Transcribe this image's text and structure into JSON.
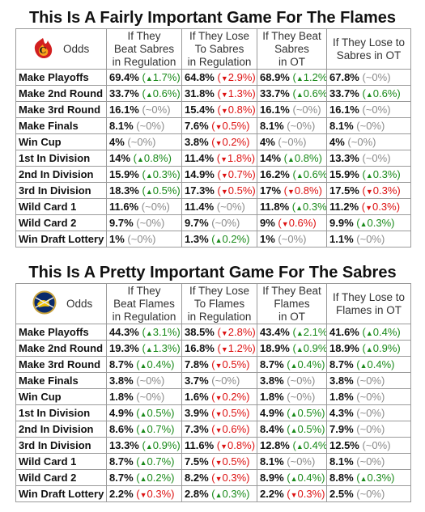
{
  "tables": [
    {
      "title": "This Is A Fairly Important Game For The Flames",
      "logo_icon": "flames-logo-icon",
      "odds_label": "Odds",
      "headers": [
        [
          "If They",
          "Beat Sabres",
          "in Regulation"
        ],
        [
          "If They Lose",
          "To Sabres",
          "in Regulation"
        ],
        [
          "If They Beat",
          "Sabres",
          "in OT"
        ],
        [
          "If They Lose to",
          "Sabres in OT"
        ]
      ],
      "rows": [
        {
          "label": "Make Playoffs",
          "cells": [
            {
              "value": "69.4%",
              "change": "1.7%",
              "dir": "up"
            },
            {
              "value": "64.8%",
              "change": "2.9%",
              "dir": "down"
            },
            {
              "value": "68.9%",
              "change": "1.2%",
              "dir": "up"
            },
            {
              "value": "67.8%",
              "change": "~0%",
              "dir": "zero"
            }
          ]
        },
        {
          "label": "Make 2nd Round",
          "cells": [
            {
              "value": "33.7%",
              "change": "0.6%",
              "dir": "up"
            },
            {
              "value": "31.8%",
              "change": "1.3%",
              "dir": "down"
            },
            {
              "value": "33.7%",
              "change": "0.6%",
              "dir": "up"
            },
            {
              "value": "33.7%",
              "change": "0.6%",
              "dir": "up"
            }
          ]
        },
        {
          "label": "Make 3rd Round",
          "cells": [
            {
              "value": "16.1%",
              "change": "~0%",
              "dir": "zero"
            },
            {
              "value": "15.4%",
              "change": "0.8%",
              "dir": "down"
            },
            {
              "value": "16.1%",
              "change": "~0%",
              "dir": "zero"
            },
            {
              "value": "16.1%",
              "change": "~0%",
              "dir": "zero"
            }
          ]
        },
        {
          "label": "Make Finals",
          "cells": [
            {
              "value": "8.1%",
              "change": "~0%",
              "dir": "zero"
            },
            {
              "value": "7.6%",
              "change": "0.5%",
              "dir": "down"
            },
            {
              "value": "8.1%",
              "change": "~0%",
              "dir": "zero"
            },
            {
              "value": "8.1%",
              "change": "~0%",
              "dir": "zero"
            }
          ]
        },
        {
          "label": "Win Cup",
          "cells": [
            {
              "value": "4%",
              "change": "~0%",
              "dir": "zero"
            },
            {
              "value": "3.8%",
              "change": "0.2%",
              "dir": "down"
            },
            {
              "value": "4%",
              "change": "~0%",
              "dir": "zero"
            },
            {
              "value": "4%",
              "change": "~0%",
              "dir": "zero"
            }
          ]
        },
        {
          "label": "1st In Division",
          "cells": [
            {
              "value": "14%",
              "change": "0.8%",
              "dir": "up"
            },
            {
              "value": "11.4%",
              "change": "1.8%",
              "dir": "down"
            },
            {
              "value": "14%",
              "change": "0.8%",
              "dir": "up"
            },
            {
              "value": "13.3%",
              "change": "~0%",
              "dir": "zero"
            }
          ]
        },
        {
          "label": "2nd In Division",
          "cells": [
            {
              "value": "15.9%",
              "change": "0.3%",
              "dir": "up"
            },
            {
              "value": "14.9%",
              "change": "0.7%",
              "dir": "down"
            },
            {
              "value": "16.2%",
              "change": "0.6%",
              "dir": "up"
            },
            {
              "value": "15.9%",
              "change": "0.3%",
              "dir": "up"
            }
          ]
        },
        {
          "label": "3rd In Division",
          "cells": [
            {
              "value": "18.3%",
              "change": "0.5%",
              "dir": "up"
            },
            {
              "value": "17.3%",
              "change": "0.5%",
              "dir": "down"
            },
            {
              "value": "17%",
              "change": "0.8%",
              "dir": "down"
            },
            {
              "value": "17.5%",
              "change": "0.3%",
              "dir": "down"
            }
          ]
        },
        {
          "label": "Wild Card 1",
          "cells": [
            {
              "value": "11.6%",
              "change": "~0%",
              "dir": "zero"
            },
            {
              "value": "11.4%",
              "change": "~0%",
              "dir": "zero"
            },
            {
              "value": "11.8%",
              "change": "0.3%",
              "dir": "up"
            },
            {
              "value": "11.2%",
              "change": "0.3%",
              "dir": "down"
            }
          ]
        },
        {
          "label": "Wild Card 2",
          "cells": [
            {
              "value": "9.7%",
              "change": "~0%",
              "dir": "zero"
            },
            {
              "value": "9.7%",
              "change": "~0%",
              "dir": "zero"
            },
            {
              "value": "9%",
              "change": "0.6%",
              "dir": "down"
            },
            {
              "value": "9.9%",
              "change": "0.3%",
              "dir": "up"
            }
          ]
        },
        {
          "label": "Win Draft Lottery",
          "cells": [
            {
              "value": "1%",
              "change": "~0%",
              "dir": "zero"
            },
            {
              "value": "1.3%",
              "change": "0.2%",
              "dir": "up"
            },
            {
              "value": "1%",
              "change": "~0%",
              "dir": "zero"
            },
            {
              "value": "1.1%",
              "change": "~0%",
              "dir": "zero"
            }
          ]
        }
      ]
    },
    {
      "title": "This Is A Pretty Important Game For The Sabres",
      "logo_icon": "sabres-logo-icon",
      "odds_label": "Odds",
      "headers": [
        [
          "If They",
          "Beat Flames",
          "in Regulation"
        ],
        [
          "If They Lose",
          "To Flames",
          "in Regulation"
        ],
        [
          "If They Beat",
          "Flames",
          "in OT"
        ],
        [
          "If They Lose to",
          "Flames in OT"
        ]
      ],
      "rows": [
        {
          "label": "Make Playoffs",
          "cells": [
            {
              "value": "44.3%",
              "change": "3.1%",
              "dir": "up"
            },
            {
              "value": "38.5%",
              "change": "2.8%",
              "dir": "down"
            },
            {
              "value": "43.4%",
              "change": "2.1%",
              "dir": "up"
            },
            {
              "value": "41.6%",
              "change": "0.4%",
              "dir": "up"
            }
          ]
        },
        {
          "label": "Make 2nd Round",
          "cells": [
            {
              "value": "19.3%",
              "change": "1.3%",
              "dir": "up"
            },
            {
              "value": "16.8%",
              "change": "1.2%",
              "dir": "down"
            },
            {
              "value": "18.9%",
              "change": "0.9%",
              "dir": "up"
            },
            {
              "value": "18.9%",
              "change": "0.9%",
              "dir": "up"
            }
          ]
        },
        {
          "label": "Make 3rd Round",
          "cells": [
            {
              "value": "8.7%",
              "change": "0.4%",
              "dir": "up"
            },
            {
              "value": "7.8%",
              "change": "0.5%",
              "dir": "down"
            },
            {
              "value": "8.7%",
              "change": "0.4%",
              "dir": "up"
            },
            {
              "value": "8.7%",
              "change": "0.4%",
              "dir": "up"
            }
          ]
        },
        {
          "label": "Make Finals",
          "cells": [
            {
              "value": "3.8%",
              "change": "~0%",
              "dir": "zero"
            },
            {
              "value": "3.7%",
              "change": "~0%",
              "dir": "zero"
            },
            {
              "value": "3.8%",
              "change": "~0%",
              "dir": "zero"
            },
            {
              "value": "3.8%",
              "change": "~0%",
              "dir": "zero"
            }
          ]
        },
        {
          "label": "Win Cup",
          "cells": [
            {
              "value": "1.8%",
              "change": "~0%",
              "dir": "zero"
            },
            {
              "value": "1.6%",
              "change": "0.2%",
              "dir": "down"
            },
            {
              "value": "1.8%",
              "change": "~0%",
              "dir": "zero"
            },
            {
              "value": "1.8%",
              "change": "~0%",
              "dir": "zero"
            }
          ]
        },
        {
          "label": "1st In Division",
          "cells": [
            {
              "value": "4.9%",
              "change": "0.5%",
              "dir": "up"
            },
            {
              "value": "3.9%",
              "change": "0.5%",
              "dir": "down"
            },
            {
              "value": "4.9%",
              "change": "0.5%",
              "dir": "up"
            },
            {
              "value": "4.3%",
              "change": "~0%",
              "dir": "zero"
            }
          ]
        },
        {
          "label": "2nd In Division",
          "cells": [
            {
              "value": "8.6%",
              "change": "0.7%",
              "dir": "up"
            },
            {
              "value": "7.3%",
              "change": "0.6%",
              "dir": "down"
            },
            {
              "value": "8.4%",
              "change": "0.5%",
              "dir": "up"
            },
            {
              "value": "7.9%",
              "change": "~0%",
              "dir": "zero"
            }
          ]
        },
        {
          "label": "3rd In Division",
          "cells": [
            {
              "value": "13.3%",
              "change": "0.9%",
              "dir": "up"
            },
            {
              "value": "11.6%",
              "change": "0.8%",
              "dir": "down"
            },
            {
              "value": "12.8%",
              "change": "0.4%",
              "dir": "up"
            },
            {
              "value": "12.5%",
              "change": "~0%",
              "dir": "zero"
            }
          ]
        },
        {
          "label": "Wild Card 1",
          "cells": [
            {
              "value": "8.7%",
              "change": "0.7%",
              "dir": "up"
            },
            {
              "value": "7.5%",
              "change": "0.5%",
              "dir": "down"
            },
            {
              "value": "8.1%",
              "change": "~0%",
              "dir": "zero"
            },
            {
              "value": "8.1%",
              "change": "~0%",
              "dir": "zero"
            }
          ]
        },
        {
          "label": "Wild Card 2",
          "cells": [
            {
              "value": "8.7%",
              "change": "0.2%",
              "dir": "up"
            },
            {
              "value": "8.2%",
              "change": "0.3%",
              "dir": "down"
            },
            {
              "value": "8.9%",
              "change": "0.4%",
              "dir": "up"
            },
            {
              "value": "8.8%",
              "change": "0.3%",
              "dir": "up"
            }
          ]
        },
        {
          "label": "Win Draft Lottery",
          "cells": [
            {
              "value": "2.2%",
              "change": "0.3%",
              "dir": "down"
            },
            {
              "value": "2.8%",
              "change": "0.3%",
              "dir": "up"
            },
            {
              "value": "2.2%",
              "change": "0.3%",
              "dir": "down"
            },
            {
              "value": "2.5%",
              "change": "~0%",
              "dir": "zero"
            }
          ]
        }
      ]
    }
  ],
  "colors": {
    "up": "#1a8a1a",
    "down": "#dd1111",
    "zero": "#8a8a8a",
    "border": "#9a9a9a"
  }
}
